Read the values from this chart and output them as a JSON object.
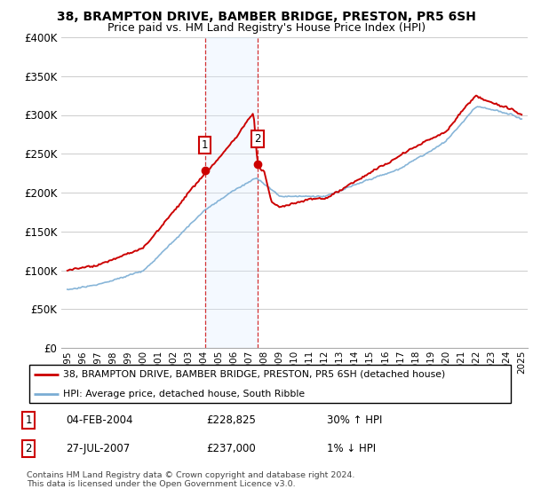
{
  "title": "38, BRAMPTON DRIVE, BAMBER BRIDGE, PRESTON, PR5 6SH",
  "subtitle": "Price paid vs. HM Land Registry's House Price Index (HPI)",
  "title_fontsize": 10,
  "subtitle_fontsize": 9,
  "ylim": [
    0,
    400000
  ],
  "yticks": [
    0,
    50000,
    100000,
    150000,
    200000,
    250000,
    300000,
    350000,
    400000
  ],
  "ytick_labels": [
    "£0",
    "£50K",
    "£100K",
    "£150K",
    "£200K",
    "£250K",
    "£300K",
    "£350K",
    "£400K"
  ],
  "house_color": "#cc0000",
  "hpi_color": "#7aadd4",
  "hpi_fill_color": "#ddeeff",
  "marker1_x": 2004.09,
  "marker1_y": 228825,
  "marker2_x": 2007.57,
  "marker2_y": 237000,
  "shade_x1": 2004.09,
  "shade_x2": 2007.57,
  "legend1_label": "38, BRAMPTON DRIVE, BAMBER BRIDGE, PRESTON, PR5 6SH (detached house)",
  "legend2_label": "HPI: Average price, detached house, South Ribble",
  "table_rows": [
    {
      "num": "1",
      "date": "04-FEB-2004",
      "price": "£228,825",
      "hpi": "30% ↑ HPI"
    },
    {
      "num": "2",
      "date": "27-JUL-2007",
      "price": "£237,000",
      "hpi": "1% ↓ HPI"
    }
  ],
  "footnote": "Contains HM Land Registry data © Crown copyright and database right 2024.\nThis data is licensed under the Open Government Licence v3.0.",
  "background_color": "#ffffff",
  "grid_color": "#cccccc",
  "xlim_min": 1994.6,
  "xlim_max": 2025.4
}
